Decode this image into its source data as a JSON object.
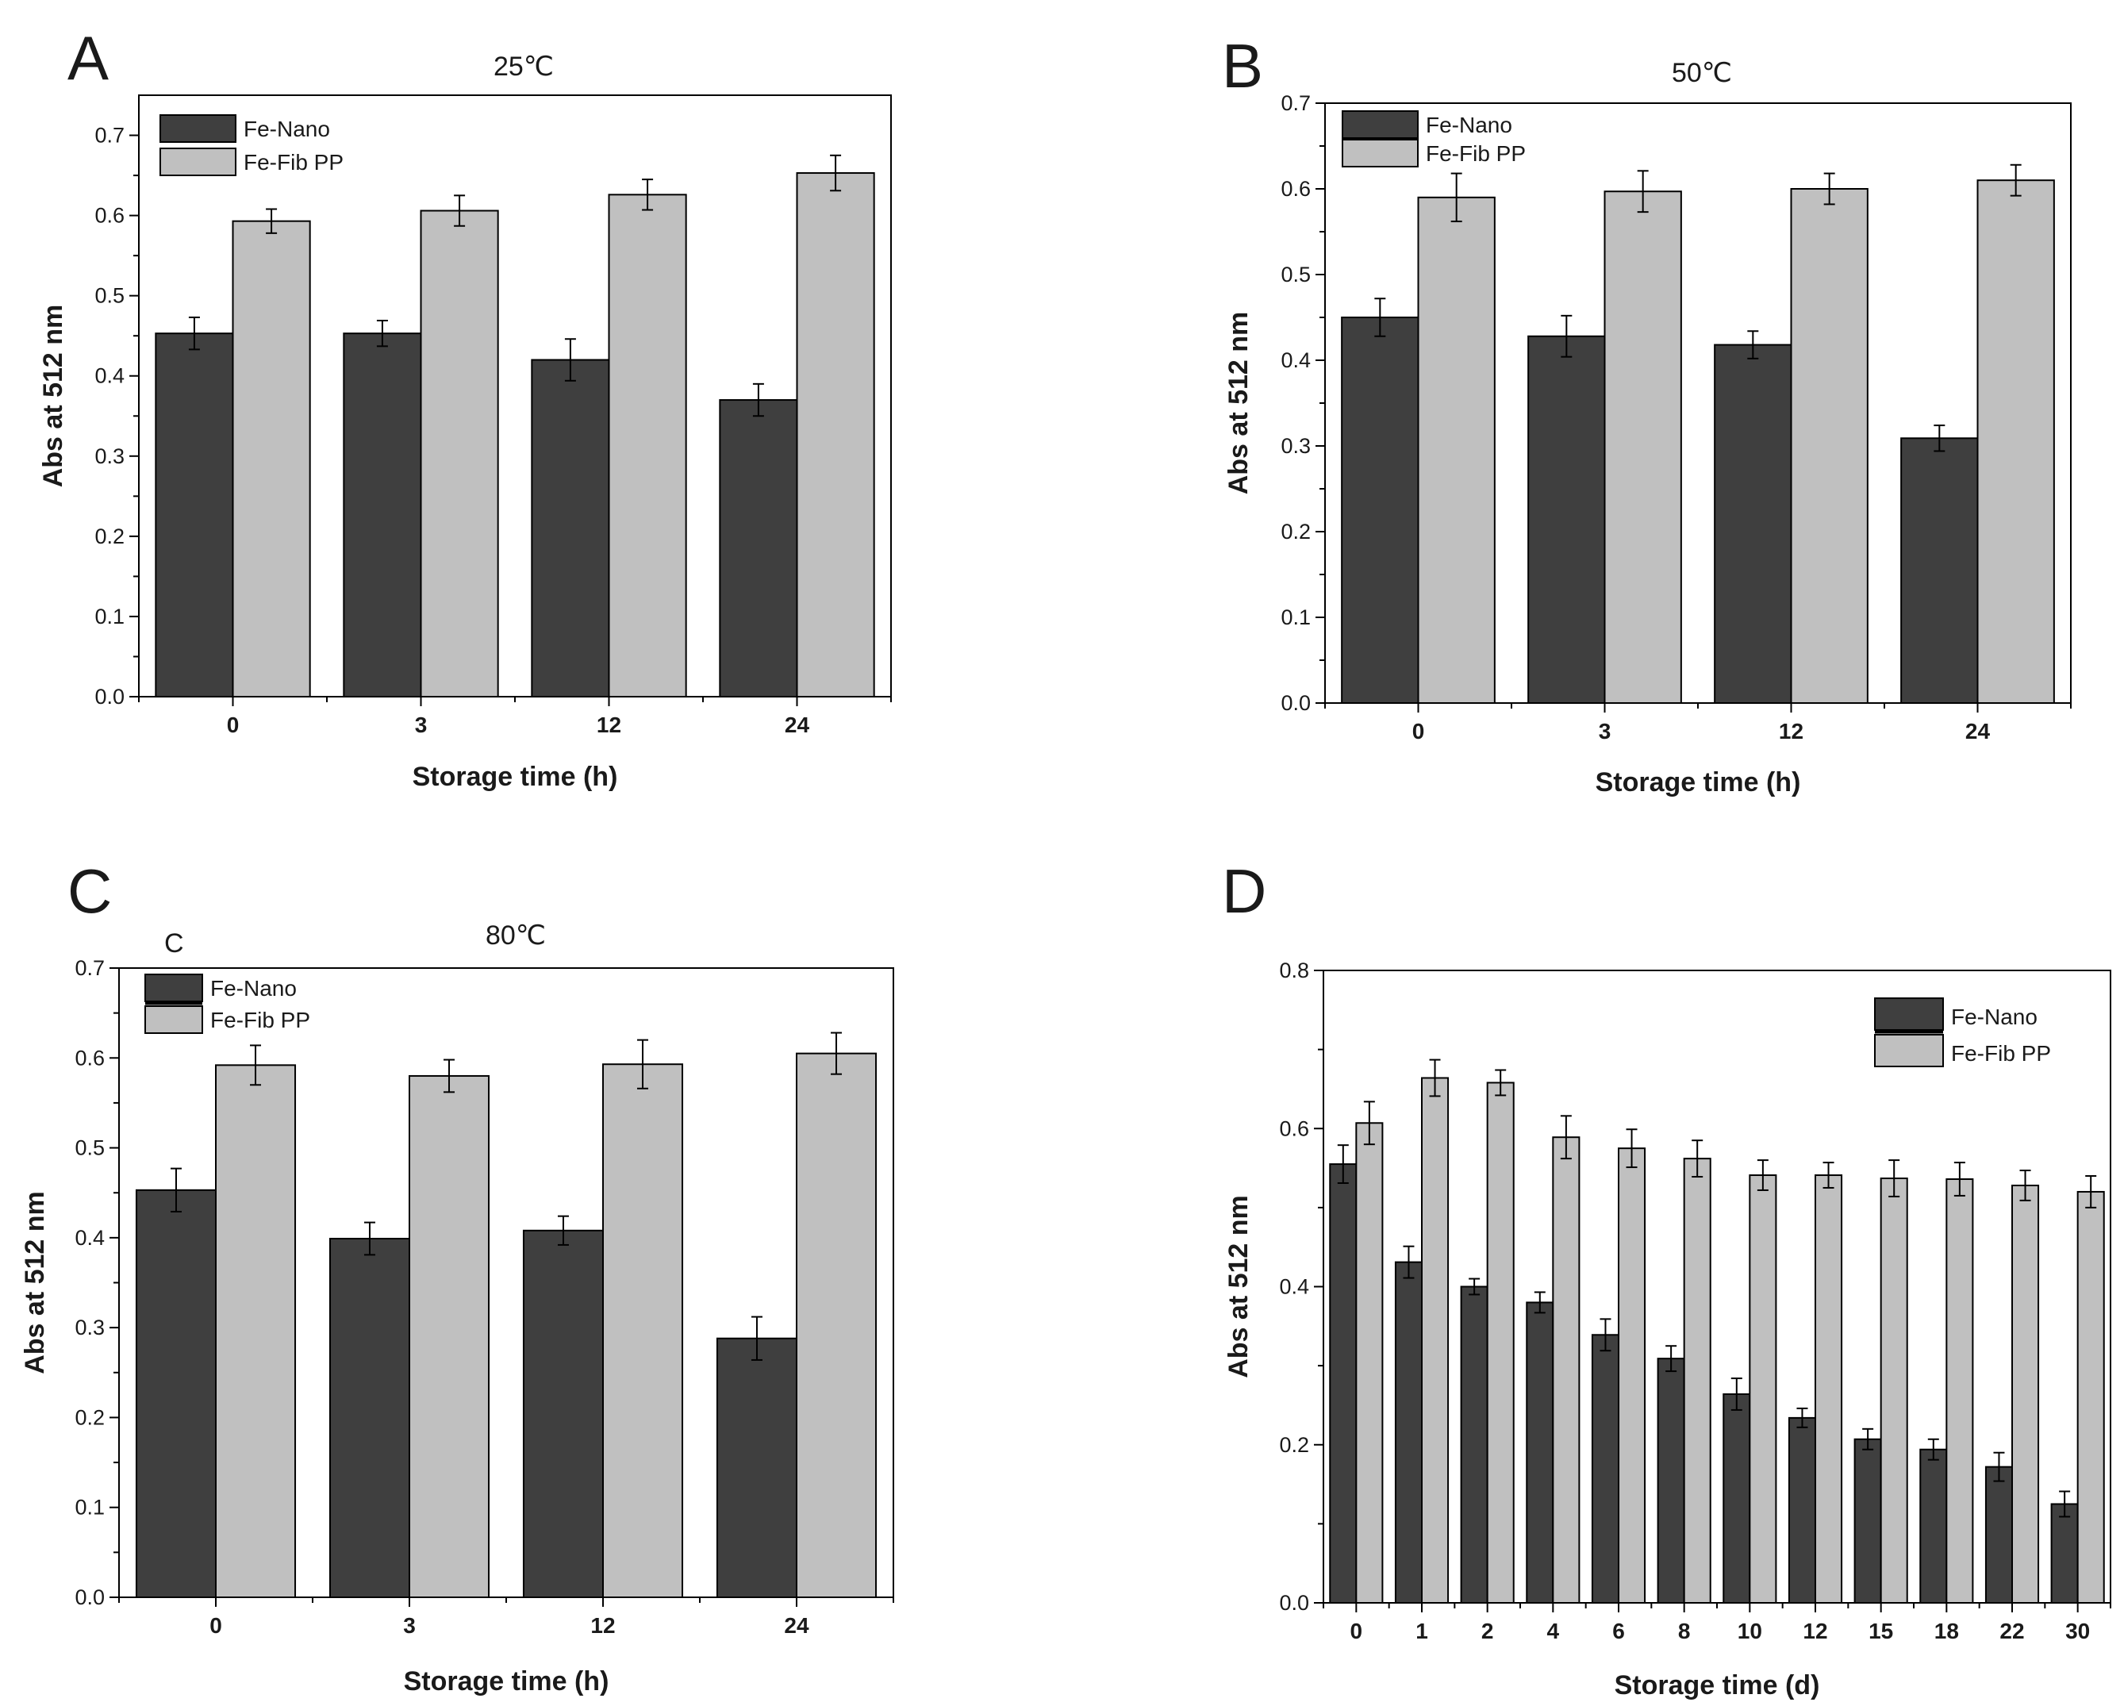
{
  "colors": {
    "nano": "#3f3f3f",
    "fib": "#c0c0c0",
    "axis": "#000000"
  },
  "chart_data": [
    {
      "id": "A",
      "type": "bar",
      "letter": "A",
      "subtitle": "",
      "title": "25℃",
      "xlabel": "Storage time (h)",
      "ylabel": "Abs at 512 nm",
      "ylim": [
        0,
        0.75
      ],
      "yticks": [
        "0.0",
        "0.1",
        "0.2",
        "0.3",
        "0.4",
        "0.5",
        "0.6",
        "0.7"
      ],
      "legend_position": "top-left",
      "legend_style": "plain",
      "categories": [
        "0",
        "3",
        "12",
        "24"
      ],
      "series": [
        {
          "name": "Fe-Nano",
          "values": [
            0.453,
            0.453,
            0.42,
            0.37
          ],
          "errors": [
            0.02,
            0.016,
            0.026,
            0.02
          ]
        },
        {
          "name": "Fe-Fib PP",
          "values": [
            0.593,
            0.606,
            0.626,
            0.653
          ],
          "errors": [
            0.015,
            0.019,
            0.019,
            0.022
          ]
        }
      ]
    },
    {
      "id": "B",
      "type": "bar",
      "letter": "B",
      "subtitle": "",
      "title": "50℃",
      "xlabel": "Storage time (h)",
      "ylabel": "Abs at 512 nm",
      "ylim": [
        0,
        0.7
      ],
      "yticks": [
        "0.0",
        "0.1",
        "0.2",
        "0.3",
        "0.4",
        "0.5",
        "0.6",
        "0.7"
      ],
      "legend_position": "top-left",
      "legend_style": "overlap",
      "categories": [
        "0",
        "3",
        "12",
        "24"
      ],
      "series": [
        {
          "name": "Fe-Nano",
          "values": [
            0.45,
            0.428,
            0.418,
            0.309
          ],
          "errors": [
            0.022,
            0.024,
            0.016,
            0.015
          ]
        },
        {
          "name": "Fe-Fib PP",
          "values": [
            0.59,
            0.597,
            0.6,
            0.61
          ],
          "errors": [
            0.028,
            0.024,
            0.018,
            0.018
          ]
        }
      ]
    },
    {
      "id": "C",
      "type": "bar",
      "letter": "C",
      "subtitle": "C",
      "title": "80℃",
      "xlabel": "Storage time (h)",
      "ylabel": "Abs at 512 nm",
      "ylim": [
        0,
        0.7
      ],
      "yticks": [
        "0.0",
        "0.1",
        "0.2",
        "0.3",
        "0.4",
        "0.5",
        "0.6",
        "0.7"
      ],
      "legend_position": "top-left",
      "legend_style": "overlap",
      "categories": [
        "0",
        "3",
        "12",
        "24"
      ],
      "series": [
        {
          "name": "Fe-Nano",
          "values": [
            0.453,
            0.399,
            0.408,
            0.288
          ],
          "errors": [
            0.024,
            0.018,
            0.016,
            0.024
          ]
        },
        {
          "name": "Fe-Fib PP",
          "values": [
            0.592,
            0.58,
            0.593,
            0.605
          ],
          "errors": [
            0.022,
            0.018,
            0.027,
            0.023
          ]
        }
      ]
    },
    {
      "id": "D",
      "type": "bar",
      "letter": "D",
      "subtitle": "",
      "title": "",
      "xlabel": "Storage time (d)",
      "ylabel": "Abs at 512 nm",
      "ylim": [
        0,
        0.8
      ],
      "yticks": [
        "0.0",
        "0.2",
        "0.4",
        "0.6",
        "0.8"
      ],
      "legend_position": "top-right",
      "legend_style": "overlap",
      "categories": [
        "0",
        "1",
        "2",
        "4",
        "6",
        "8",
        "10",
        "12",
        "15",
        "18",
        "22",
        "30"
      ],
      "series": [
        {
          "name": "Fe-Nano",
          "values": [
            0.555,
            0.431,
            0.4,
            0.38,
            0.339,
            0.309,
            0.264,
            0.234,
            0.207,
            0.194,
            0.172,
            0.125
          ],
          "errors": [
            0.024,
            0.02,
            0.01,
            0.013,
            0.02,
            0.016,
            0.02,
            0.012,
            0.013,
            0.013,
            0.018,
            0.016
          ]
        },
        {
          "name": "Fe-Fib PP",
          "values": [
            0.607,
            0.664,
            0.658,
            0.589,
            0.575,
            0.562,
            0.541,
            0.541,
            0.537,
            0.536,
            0.528,
            0.52
          ],
          "errors": [
            0.027,
            0.023,
            0.016,
            0.027,
            0.024,
            0.023,
            0.019,
            0.016,
            0.023,
            0.021,
            0.019,
            0.02
          ]
        }
      ]
    }
  ]
}
